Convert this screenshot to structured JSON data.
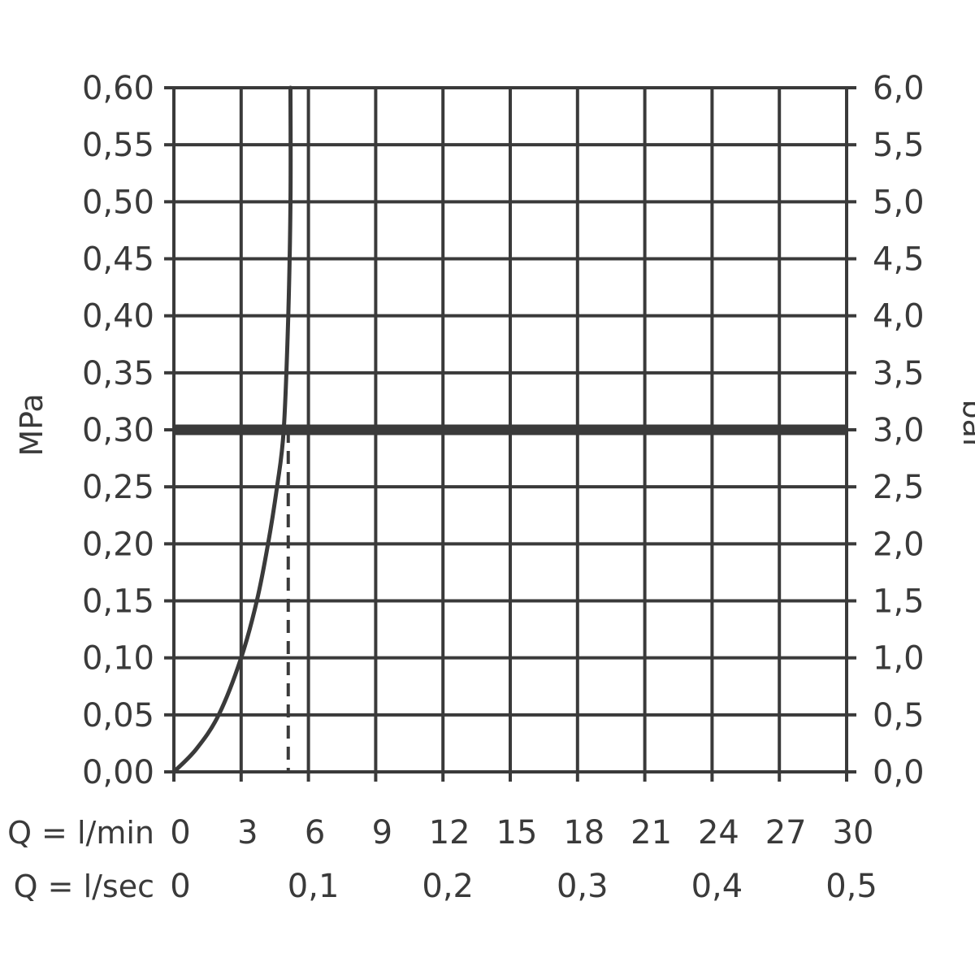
{
  "chart_data": {
    "type": "line",
    "title": "",
    "ylabel_left": "MPa",
    "ylabel_right": "bar",
    "x_row_labels": [
      "Q = l/min",
      "Q = l/sec"
    ],
    "xlim": [
      0,
      30
    ],
    "ylim": [
      0,
      0.6
    ],
    "x_ticks_lmin": [
      "0",
      "3",
      "6",
      "9",
      "12",
      "15",
      "18",
      "21",
      "24",
      "27",
      "30"
    ],
    "x_ticks_lsec": [
      "0",
      "0,1",
      "0,2",
      "0,3",
      "0,4",
      "0,5"
    ],
    "y_ticks_mpa": [
      "0,00",
      "0,05",
      "0,10",
      "0,15",
      "0,20",
      "0,25",
      "0,30",
      "0,35",
      "0,40",
      "0,45",
      "0,50",
      "0,55",
      "0,60"
    ],
    "y_ticks_bar": [
      "0,0",
      "0,5",
      "1,0",
      "1,5",
      "2,0",
      "2,5",
      "3,0",
      "3,5",
      "4,0",
      "4,5",
      "5,0",
      "5,5",
      "6,0"
    ],
    "grid": true,
    "series": [
      {
        "x": [
          0,
          1,
          2,
          3,
          3.7,
          4.2,
          4.6,
          4.9,
          5.1,
          5.2,
          5.2
        ],
        "y": [
          0,
          0.02,
          0.05,
          0.1,
          0.15,
          0.2,
          0.25,
          0.3,
          0.4,
          0.5,
          0.6
        ]
      }
    ],
    "reference_line_y": 0.3,
    "marker_x": 5.1
  },
  "colors": {
    "ink": "#3a3a3a",
    "background": "#ffffff"
  }
}
